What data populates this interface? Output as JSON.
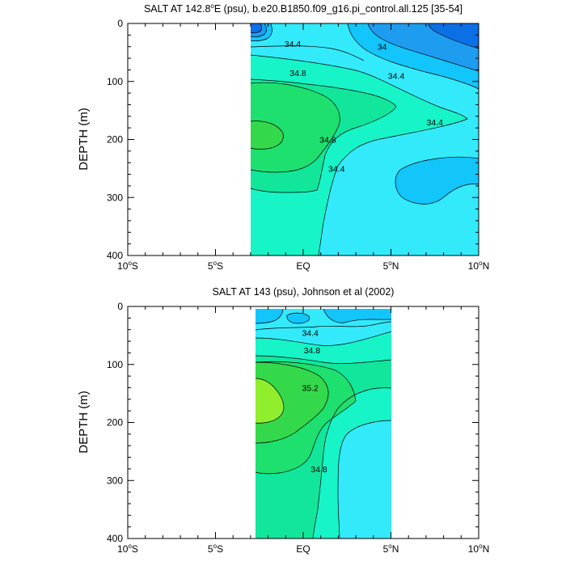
{
  "colors": {
    "s34_0_low": "#0b6fe6",
    "s34_0": "#1e9cf0",
    "s34_2": "#12c5fb",
    "s34_4": "#33eafb",
    "s34_6": "#16f4c8",
    "s34_8": "#12e69b",
    "s35_0": "#1ee06e",
    "s35_2": "#33d94a",
    "s35_4": "#90ee2d"
  },
  "chart_data": [
    {
      "type": "contour",
      "title": "SALT AT 142.8°E (psu), b.e20.B1850.f09_g16.pi_control.all.125 [35-54]",
      "title_main": "SALT AT 142.8",
      "title_sup": "o",
      "title_rest": "E (psu), b.e20.B1850.f09_g16.pi_control.all.125 [35-54]",
      "ylabel": "DEPTH (m)",
      "xlim": [
        -10,
        10
      ],
      "ylim": [
        400,
        0
      ],
      "data_x_range": [
        -3.2,
        10
      ],
      "x_ticks": [
        {
          "value": -10,
          "label": "10",
          "sup": "o",
          "suffix": "S"
        },
        {
          "value": -5,
          "label": "5",
          "sup": "o",
          "suffix": "S"
        },
        {
          "value": 0,
          "label": "EQ",
          "sup": "",
          "suffix": ""
        },
        {
          "value": 5,
          "label": "5",
          "sup": "o",
          "suffix": "N"
        },
        {
          "value": 10,
          "label": "10",
          "sup": "o",
          "suffix": "N"
        }
      ],
      "y_ticks": [
        0,
        100,
        200,
        300,
        400
      ],
      "contour_labels": [
        {
          "text": "34.4",
          "x": -0.6,
          "y": 35
        },
        {
          "text": "34",
          "x": 4.5,
          "y": 40
        },
        {
          "text": "34.4",
          "x": 5.3,
          "y": 90
        },
        {
          "text": "34.8",
          "x": -0.3,
          "y": 85
        },
        {
          "text": "34.4",
          "x": 7.5,
          "y": 170
        },
        {
          "text": "34.8",
          "x": 1.4,
          "y": 200
        },
        {
          "text": "34.4",
          "x": 1.9,
          "y": 250
        }
      ]
    },
    {
      "type": "contour",
      "title": "SALT AT 143 (psu), Johnson et al (2002)",
      "title_main": "SALT AT 143 (psu), Johnson et al (2002)",
      "title_sup": "",
      "title_rest": "",
      "ylabel": "DEPTH (m)",
      "xlim": [
        -10,
        10
      ],
      "ylim": [
        400,
        0
      ],
      "data_x_range": [
        -2.9,
        5
      ],
      "x_ticks": [
        {
          "value": -10,
          "label": "10",
          "sup": "o",
          "suffix": "S"
        },
        {
          "value": -5,
          "label": "5",
          "sup": "o",
          "suffix": "S"
        },
        {
          "value": 0,
          "label": "EQ",
          "sup": "",
          "suffix": ""
        },
        {
          "value": 5,
          "label": "5",
          "sup": "o",
          "suffix": "N"
        },
        {
          "value": 10,
          "label": "10",
          "sup": "o",
          "suffix": "N"
        }
      ],
      "y_ticks": [
        0,
        100,
        200,
        300,
        400
      ],
      "contour_labels": [
        {
          "text": "34.4",
          "x": 0.4,
          "y": 45
        },
        {
          "text": "34.8",
          "x": 0.5,
          "y": 75
        },
        {
          "text": "35.2",
          "x": 0.4,
          "y": 140
        },
        {
          "text": "34.8",
          "x": 0.9,
          "y": 280
        }
      ]
    }
  ]
}
